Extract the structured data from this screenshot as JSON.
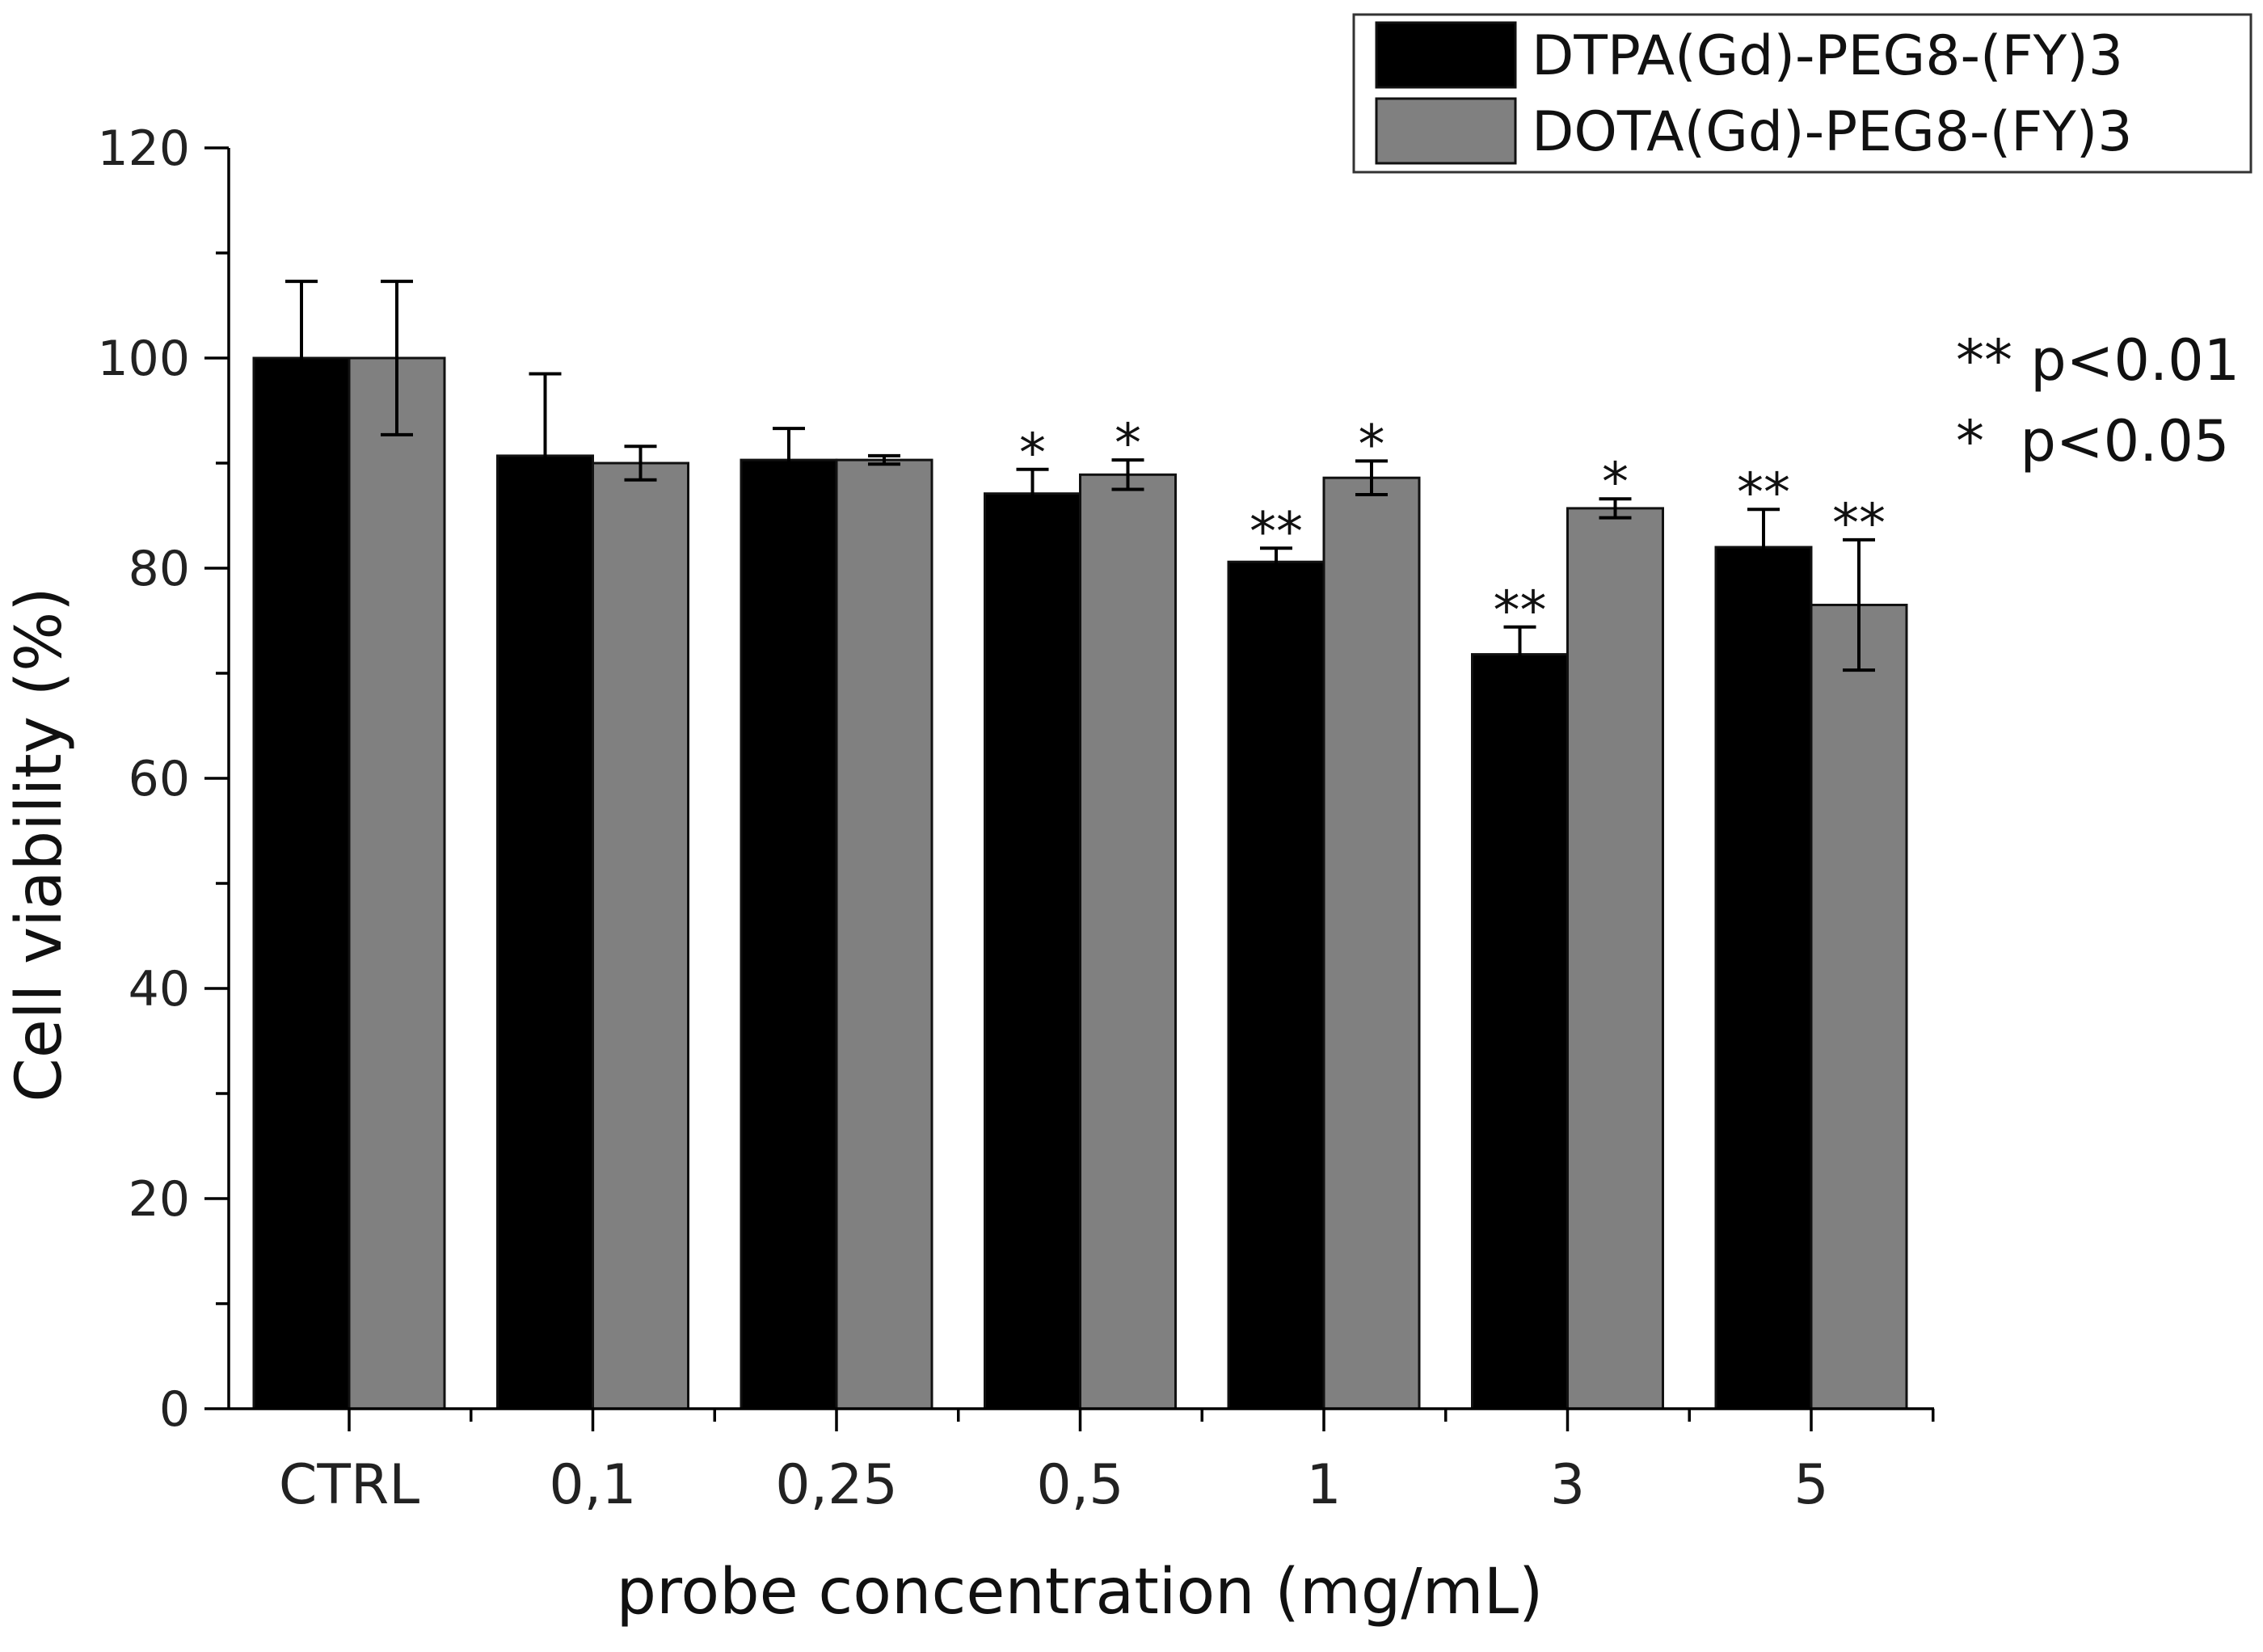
{
  "chart_data": {
    "type": "bar",
    "title": "",
    "xlabel": "probe concentration (mg/mL)",
    "ylabel": "Cell viability (%)",
    "ylim": [
      0,
      120
    ],
    "yticks": [
      0,
      20,
      40,
      60,
      80,
      100,
      120
    ],
    "categories": [
      "CTRL",
      "0,1",
      "0,25",
      "0,5",
      "1",
      "3",
      "5"
    ],
    "legend_position": "top-right",
    "series": [
      {
        "name": "DTPA(Gd)-PEG8-(FY)3",
        "color": "#000000",
        "values": [
          100,
          90.7,
          90.3,
          87.1,
          80.6,
          71.8,
          82.0
        ],
        "errors": [
          7.3,
          7.8,
          3.0,
          2.3,
          1.3,
          2.6,
          3.6
        ],
        "significance": [
          "",
          "",
          "",
          "*",
          "**",
          "**",
          "**"
        ]
      },
      {
        "name": "DOTA(Gd)-PEG8-(FY)3",
        "color": "#808080",
        "values": [
          100,
          90.0,
          90.3,
          88.9,
          88.6,
          85.7,
          76.5
        ],
        "errors": [
          7.3,
          1.6,
          0.4,
          1.4,
          1.6,
          0.9,
          6.2
        ],
        "significance": [
          "",
          "",
          "",
          "*",
          "*",
          "*",
          "**"
        ]
      }
    ],
    "annotations": [
      "** p<0.01",
      "*  p<0.05"
    ]
  }
}
